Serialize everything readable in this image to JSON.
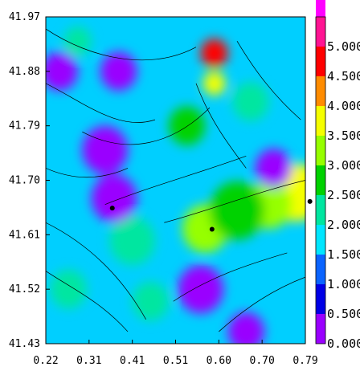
{
  "chart_data": {
    "type": "heatmap",
    "title": "",
    "xlabel": "",
    "ylabel": "",
    "xlim": [
      0.22,
      0.79
    ],
    "ylim": [
      41.43,
      41.97
    ],
    "x_ticks": [
      "0.22",
      "0.31",
      "0.41",
      "0.51",
      "0.60",
      "0.70",
      "0.79"
    ],
    "y_ticks": [
      "41.43",
      "41.52",
      "41.61",
      "41.70",
      "41.79",
      "41.88",
      "41.97"
    ],
    "colorbar": {
      "labels": [
        "0.000",
        "0.500",
        "1.000",
        "1.500",
        "2.000",
        "2.500",
        "3.000",
        "3.500",
        "4.000",
        "4.500",
        "5.000"
      ],
      "range": [
        0,
        5.5
      ],
      "colors": [
        "#9a00ff",
        "#0000e6",
        "#0a64ff",
        "#00e6ff",
        "#00e6a0",
        "#00d200",
        "#96ff00",
        "#f5ff00",
        "#ff8c00",
        "#ff0000",
        "#ff1493",
        "#ff00ff"
      ]
    },
    "points": [
      {
        "x": 0.366,
        "y": 41.654
      },
      {
        "x": 0.585,
        "y": 41.619
      },
      {
        "x": 0.8,
        "y": 41.665
      }
    ],
    "hotspots": [
      {
        "x": 0.59,
        "y": 41.91,
        "r": 0.03,
        "value": 4.6
      },
      {
        "x": 0.59,
        "y": 41.86,
        "r": 0.025,
        "value": 3.8
      },
      {
        "x": 0.77,
        "y": 41.68,
        "r": 0.06,
        "value": 3.6
      },
      {
        "x": 0.71,
        "y": 41.66,
        "r": 0.05,
        "value": 3.2
      },
      {
        "x": 0.57,
        "y": 41.62,
        "r": 0.05,
        "value": 3.4
      },
      {
        "x": 0.64,
        "y": 41.65,
        "r": 0.06,
        "value": 2.6
      },
      {
        "x": 0.53,
        "y": 41.79,
        "r": 0.04,
        "value": 2.8
      },
      {
        "x": 0.67,
        "y": 41.83,
        "r": 0.04,
        "value": 2.4
      },
      {
        "x": 0.41,
        "y": 41.6,
        "r": 0.05,
        "value": 2.2
      },
      {
        "x": 0.45,
        "y": 41.5,
        "r": 0.04,
        "value": 2.0
      },
      {
        "x": 0.27,
        "y": 41.52,
        "r": 0.04,
        "value": 2.0
      },
      {
        "x": 0.29,
        "y": 41.93,
        "r": 0.03,
        "value": 2.2
      },
      {
        "x": 0.35,
        "y": 41.75,
        "r": 0.05,
        "value": 0.3
      },
      {
        "x": 0.37,
        "y": 41.67,
        "r": 0.05,
        "value": 0.3
      },
      {
        "x": 0.38,
        "y": 41.88,
        "r": 0.04,
        "value": 0.4
      },
      {
        "x": 0.56,
        "y": 41.52,
        "r": 0.05,
        "value": 0.3
      },
      {
        "x": 0.72,
        "y": 41.72,
        "r": 0.04,
        "value": 0.4
      },
      {
        "x": 0.66,
        "y": 41.45,
        "r": 0.04,
        "value": 0.3
      },
      {
        "x": 0.25,
        "y": 41.88,
        "r": 0.04,
        "value": 0.4
      }
    ]
  }
}
